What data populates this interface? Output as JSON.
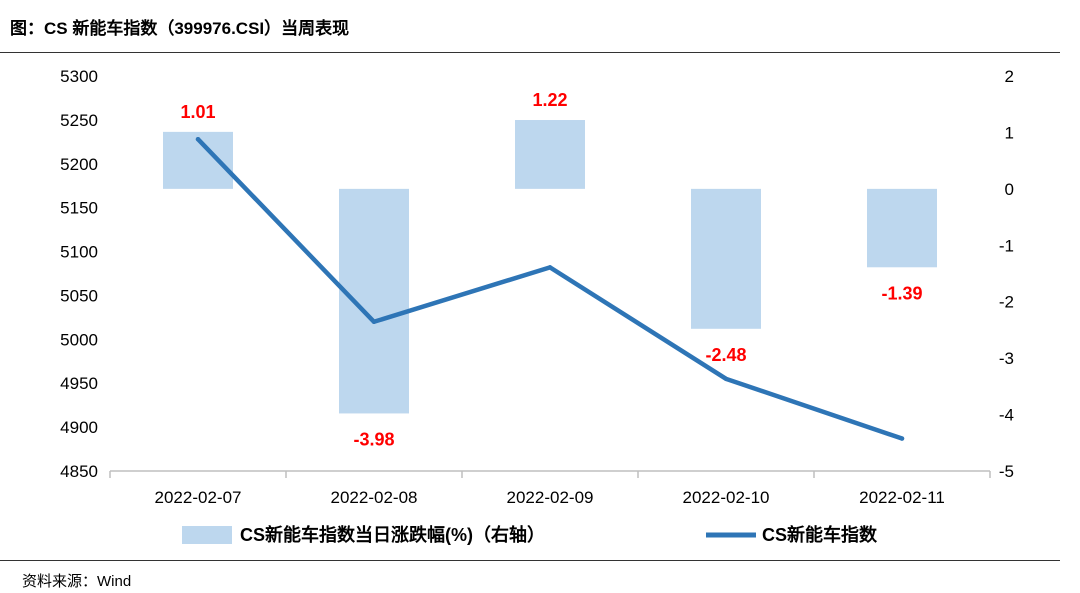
{
  "header": {
    "title": "图：CS 新能车指数（399976.CSI）当周表现"
  },
  "footer": {
    "source": "资料来源：Wind"
  },
  "chart_data": {
    "type": "bar+line",
    "categories": [
      "2022-02-07",
      "2022-02-08",
      "2022-02-09",
      "2022-02-10",
      "2022-02-11"
    ],
    "series": [
      {
        "name": "CS新能车指数当日涨跌幅(%)（右轴）",
        "type": "bar",
        "axis": "right",
        "color": "#bdd7ee",
        "values": [
          1.01,
          -3.98,
          1.22,
          -2.48,
          -1.39
        ],
        "labels": [
          "1.01",
          "-3.98",
          "1.22",
          "-2.48",
          "-1.39"
        ]
      },
      {
        "name": "CS新能车指数",
        "type": "line",
        "axis": "left",
        "color": "#2e75b6",
        "values": [
          5228,
          5020,
          5082,
          4955,
          4887
        ]
      }
    ],
    "y_left": {
      "range": [
        4850,
        5300
      ],
      "ticks": [
        4850,
        4900,
        4950,
        5000,
        5050,
        5100,
        5150,
        5200,
        5250,
        5300
      ]
    },
    "y_right": {
      "range": [
        -5,
        2
      ],
      "ticks": [
        -5,
        -4,
        -3,
        -2,
        -1,
        0,
        1,
        2
      ]
    },
    "legend": {
      "placement": "bottom",
      "bar_label": "CS新能车指数当日涨跌幅(%)（右轴）",
      "line_label": "CS新能车指数"
    },
    "label_color": "#ff0000"
  }
}
